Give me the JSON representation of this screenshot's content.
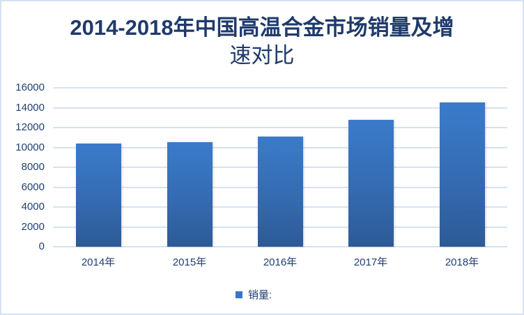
{
  "chart_data": {
    "type": "bar",
    "title": "2014-2018年中国高温合金市场销量及增速对比",
    "title_lines": [
      "2014-2018年中国高温合金市场销量及增",
      "速对比"
    ],
    "categories": [
      "2014年",
      "2015年",
      "2016年",
      "2017年",
      "2018年"
    ],
    "series": [
      {
        "name": "销量:",
        "values": [
          10400,
          10500,
          11100,
          12800,
          14500
        ],
        "color": "#3a74c2"
      }
    ],
    "xlabel": "",
    "ylabel": "",
    "ylim": [
      0,
      16000
    ],
    "yticks": [
      "0",
      "2000",
      "4000",
      "6000",
      "8000",
      "10000",
      "12000",
      "14000",
      "16000"
    ],
    "grid": true,
    "legend_position": "bottom"
  }
}
